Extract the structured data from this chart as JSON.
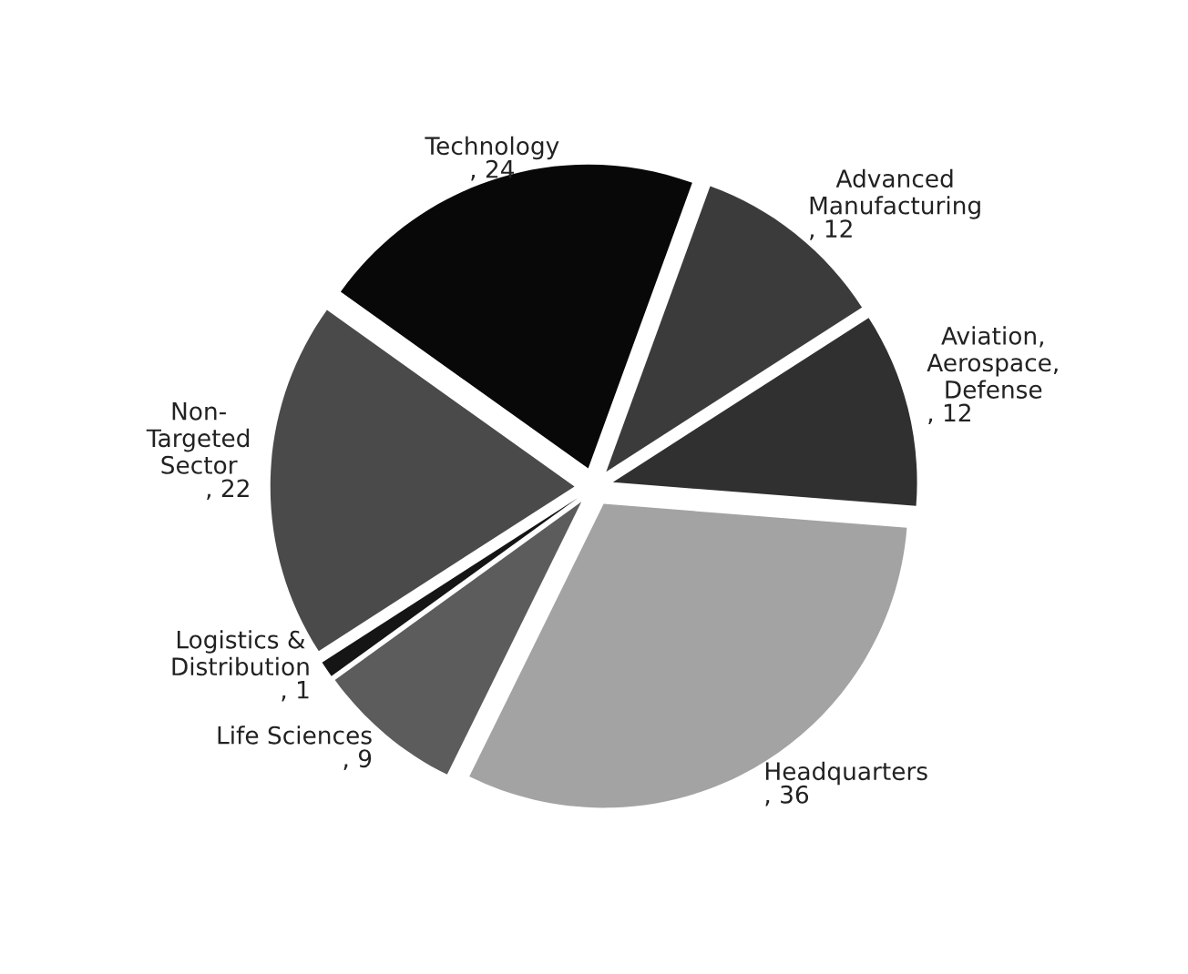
{
  "chart_data": {
    "type": "pie",
    "categories": [
      "Advanced\nManufacturing",
      "Aviation,\nAerospace,\nDefense",
      "Headquarters",
      "Life Sciences",
      "Logistics &\nDistribution",
      "Non-\nTargeted\nSector",
      "Technology"
    ],
    "values": [
      12,
      12,
      36,
      9,
      1,
      22,
      24
    ],
    "value_labels": [
      ", 12",
      ", 12",
      ", 36",
      ", 9",
      ", 1",
      ", 22",
      ", 24"
    ],
    "colors": [
      "#3b3b3b",
      "#303030",
      "#a3a3a3",
      "#5c5c5c",
      "#151515",
      "#4a4a4a",
      "#080808"
    ]
  }
}
